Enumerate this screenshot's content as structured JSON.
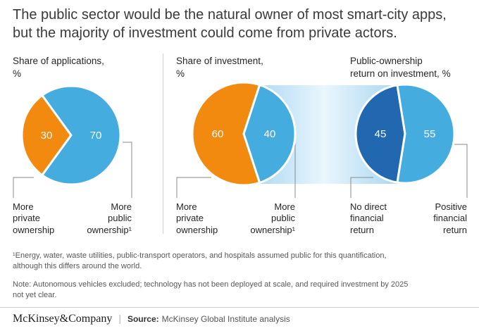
{
  "title": "The public sector would be the natural owner of most smart-city apps,\nbut the majority of investment could come from private actors.",
  "panels": [
    {
      "heading": "Share of applications,\n%",
      "left_label": "More\nprivate\nownership",
      "right_label": "More\npublic\nownership¹"
    },
    {
      "heading": "Share of investment,\n%",
      "left_label": "More\nprivate\nownership",
      "right_label": "More\npublic\nownership¹"
    },
    {
      "heading": "Public-ownership\nreturn on investment, %",
      "left_label": "No direct\nfinancial\nreturn",
      "right_label": "Positive\nfinancial\nreturn"
    }
  ],
  "chart_data": [
    {
      "type": "pie",
      "title": "Share of applications, %",
      "slices": [
        {
          "label": "More private ownership",
          "value": 30,
          "color": "#F28A10"
        },
        {
          "label": "More public ownership¹",
          "value": 70,
          "color": "#45ACDF"
        }
      ]
    },
    {
      "type": "pie",
      "title": "Share of investment, %",
      "slices": [
        {
          "label": "More private ownership",
          "value": 60,
          "color": "#F28A10"
        },
        {
          "label": "More public ownership¹",
          "value": 40,
          "color": "#45ACDF"
        }
      ]
    },
    {
      "type": "pie",
      "title": "Public-ownership return on investment, %",
      "slices": [
        {
          "label": "No direct financial return",
          "value": 45,
          "color": "#2268B0"
        },
        {
          "label": "Positive financial return",
          "value": 55,
          "color": "#45ACDF"
        }
      ]
    }
  ],
  "colors": {
    "orange": "#F28A10",
    "light_blue": "#45ACDF",
    "dark_blue": "#2268B0",
    "band_edge": "#A3D4F0",
    "band_mid": "#E9F6FD"
  },
  "footnote": "¹Energy, water, waste utilities, public-transport operators, and hospitals assumed public for this quantification,\nalthough this differs around the world.",
  "note": "Note: Autonomous vehicles excluded; technology has not been deployed at scale, and required investment by 2025\nnot yet clear.",
  "footer": {
    "brand": "McKinsey&Company",
    "source_label": "Source:",
    "source_text": "McKinsey Global Institute analysis"
  }
}
